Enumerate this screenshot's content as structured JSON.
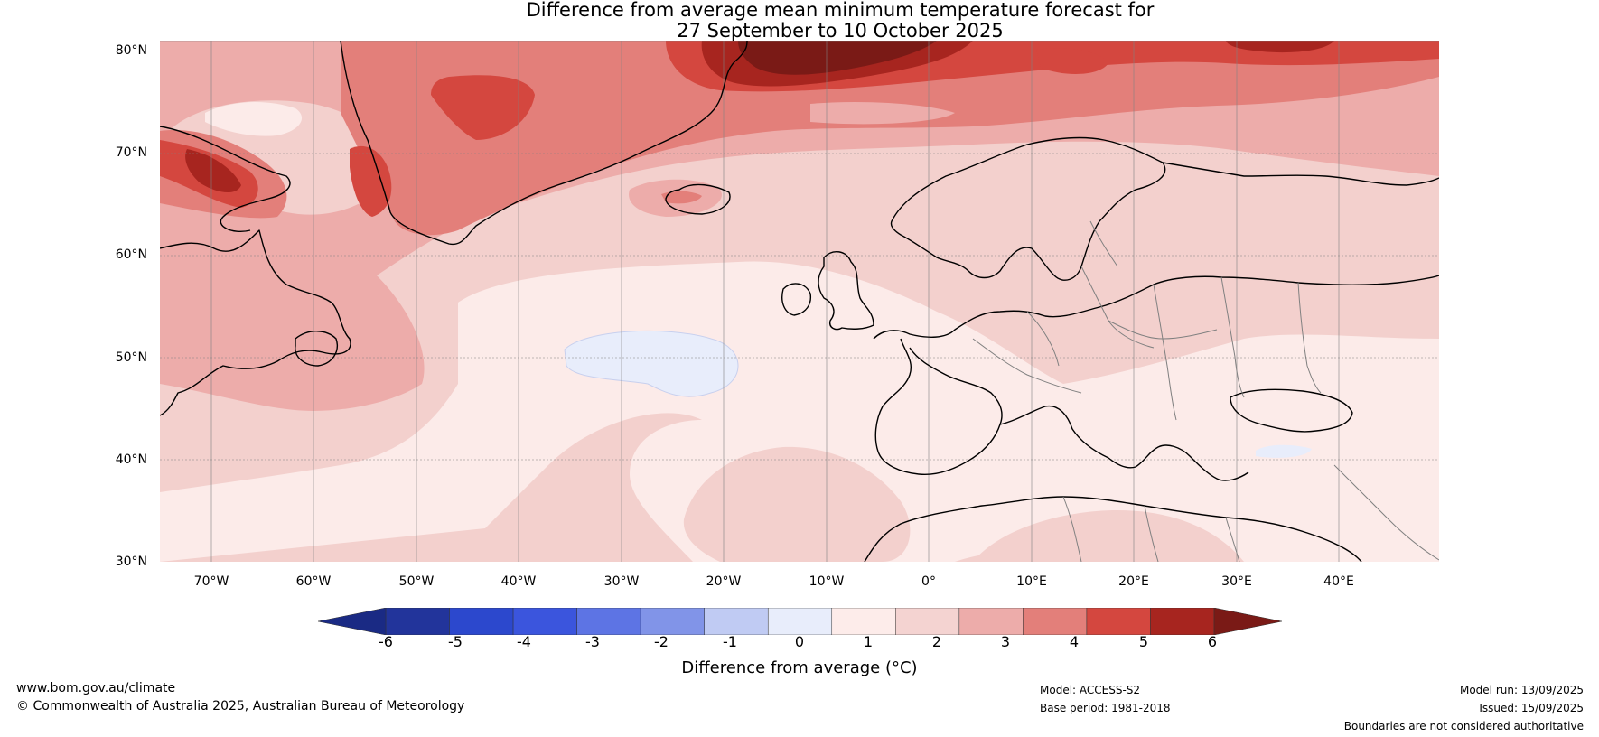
{
  "title": {
    "line1": "Difference from average mean minimum temperature forecast for",
    "line2": "27 September to 10 October 2025"
  },
  "map": {
    "region": "North Atlantic and Europe",
    "lat_labels": [
      "80°N",
      "70°N",
      "60°N",
      "50°N",
      "40°N",
      "30°N"
    ],
    "lon_labels": [
      "70°W",
      "60°W",
      "50°W",
      "40°W",
      "30°W",
      "20°W",
      "10°W",
      "0°",
      "10°E",
      "20°E",
      "30°E",
      "40°E"
    ],
    "gridlines": true,
    "coastline_color": "#000000",
    "border_color": "#808080"
  },
  "colorbar": {
    "ticks": [
      "-6",
      "-5",
      "-4",
      "-3",
      "-2",
      "-1",
      "0",
      "1",
      "2",
      "3",
      "4",
      "5",
      "6"
    ],
    "colors": [
      "#22349b",
      "#2c48cd",
      "#3b55dd",
      "#5d74e4",
      "#8194e8",
      "#c0cbf3",
      "#e8edfb",
      "#fdecea",
      "#f4d3d1",
      "#edacaa",
      "#e37f7a",
      "#d4473f",
      "#a7251f"
    ],
    "extend_low_color": "#1a2a84",
    "extend_high_color": "#7a1a16",
    "label": "Difference from average (°C)"
  },
  "footer": {
    "website": "www.bom.gov.au/climate",
    "copyright": "© Commonwealth of Australia 2025, Australian Bureau of Meteorology",
    "model": "Model: ACCESS-S2",
    "base_period": "Base period: 1981-2018",
    "model_run": "Model run: 13/09/2025",
    "issued": "Issued: 15/09/2025",
    "disclaimer": "Boundaries are not considered authoritative"
  }
}
